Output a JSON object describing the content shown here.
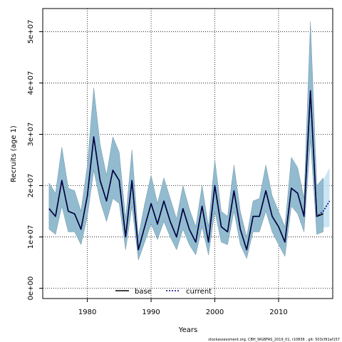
{
  "chart_data": {
    "type": "line",
    "xlabel": "Years",
    "ylabel": "Recruits (age 1)",
    "xlim": [
      1973,
      2018.5
    ],
    "ylim": [
      -2000000,
      54500000
    ],
    "xticks": [
      1980,
      1990,
      2000,
      2010
    ],
    "yticks": [
      0,
      10000000,
      20000000,
      30000000,
      40000000,
      50000000
    ],
    "ytick_labels": [
      "0e+00",
      "1e+07",
      "2e+07",
      "3e+07",
      "4e+07",
      "5e+07"
    ],
    "grid": true,
    "legend": {
      "placement": "bottom-center",
      "entries": [
        "base",
        "current"
      ]
    },
    "footer_text": "stockassessment.org, CBH_WGBFAS_2019_01, r10836 , git: 503cf91af157",
    "series": [
      {
        "name": "base",
        "style": "solid",
        "color": "#000000",
        "band_color": "#8fb8cc",
        "x": [
          1974,
          1975,
          1976,
          1977,
          1978,
          1979,
          1980,
          1981,
          1982,
          1983,
          1984,
          1985,
          1986,
          1987,
          1988,
          1989,
          1990,
          1991,
          1992,
          1993,
          1994,
          1995,
          1996,
          1997,
          1998,
          1999,
          2000,
          2001,
          2002,
          2003,
          2004,
          2005,
          2006,
          2007,
          2008,
          2009,
          2010,
          2011,
          2012,
          2013,
          2014,
          2015,
          2016,
          2017
        ],
        "values": [
          15500000,
          14000000,
          21000000,
          15000000,
          14500000,
          11500000,
          18000000,
          29500000,
          21000000,
          17000000,
          23000000,
          21000000,
          10000000,
          21000000,
          7500000,
          12000000,
          16500000,
          12500000,
          17000000,
          13000000,
          10000000,
          15500000,
          11500000,
          9000000,
          16000000,
          9000000,
          20000000,
          12000000,
          11000000,
          19000000,
          11500000,
          7500000,
          14000000,
          14000000,
          19000000,
          14000000,
          12000000,
          9000000,
          19500000,
          18500000,
          14000000,
          38500000,
          14000000,
          14500000
        ],
        "lower": [
          11500000,
          10500000,
          16000000,
          11000000,
          11000000,
          8500000,
          14000000,
          23000000,
          17000000,
          13000000,
          17500000,
          16500000,
          7500000,
          16000000,
          5500000,
          9000000,
          12500000,
          9500000,
          13000000,
          10000000,
          7500000,
          11500000,
          8500000,
          6500000,
          12000000,
          6500000,
          15000000,
          9000000,
          8500000,
          15000000,
          8500000,
          5800000,
          11000000,
          11000000,
          15000000,
          11000000,
          8500000,
          6200000,
          16000000,
          14500000,
          11000000,
          29000000,
          10500000,
          11000000
        ],
        "upper": [
          20500000,
          18500000,
          27500000,
          19500000,
          19000000,
          15000000,
          24000000,
          39000000,
          28000000,
          22000000,
          29500000,
          26500000,
          13500000,
          27000000,
          10000000,
          16500000,
          22000000,
          16500000,
          21500000,
          17500000,
          13500000,
          20000000,
          15500000,
          12000000,
          20000000,
          12000000,
          25000000,
          15000000,
          14000000,
          24000000,
          15000000,
          10000000,
          17000000,
          17500000,
          24000000,
          18000000,
          15000000,
          12000000,
          25500000,
          23500000,
          17500000,
          52000000,
          20000000,
          21500000
        ]
      },
      {
        "name": "current",
        "style": "dotted",
        "color": "#000080",
        "band_color": "#bfe0f2",
        "x": [
          1974,
          1975,
          1976,
          1977,
          1978,
          1979,
          1980,
          1981,
          1982,
          1983,
          1984,
          1985,
          1986,
          1987,
          1988,
          1989,
          1990,
          1991,
          1992,
          1993,
          1994,
          1995,
          1996,
          1997,
          1998,
          1999,
          2000,
          2001,
          2002,
          2003,
          2004,
          2005,
          2006,
          2007,
          2008,
          2009,
          2010,
          2011,
          2012,
          2013,
          2014,
          2015,
          2016,
          2017,
          2018
        ],
        "values": [
          15500000,
          14000000,
          21000000,
          15000000,
          14500000,
          11500000,
          18000000,
          29500000,
          21000000,
          17000000,
          23000000,
          21000000,
          10000000,
          21000000,
          7500000,
          12000000,
          16500000,
          12500000,
          17000000,
          13000000,
          10000000,
          15500000,
          11500000,
          9000000,
          16000000,
          9000000,
          20000000,
          12000000,
          11000000,
          19000000,
          11500000,
          7500000,
          14000000,
          14000000,
          19000000,
          14000000,
          12000000,
          9000000,
          19500000,
          18500000,
          14000000,
          38500000,
          14000000,
          15000000,
          17000000
        ],
        "lower": [
          11500000,
          10500000,
          16000000,
          11000000,
          11000000,
          8500000,
          14000000,
          23000000,
          17000000,
          13000000,
          17500000,
          16500000,
          7500000,
          16000000,
          5500000,
          9000000,
          12500000,
          9500000,
          13000000,
          10000000,
          7500000,
          11500000,
          8500000,
          6500000,
          12000000,
          6500000,
          15000000,
          9000000,
          8500000,
          15000000,
          8500000,
          5800000,
          11000000,
          11000000,
          15000000,
          11000000,
          8500000,
          6200000,
          16000000,
          14500000,
          11000000,
          29000000,
          10700000,
          11800000,
          12000000
        ],
        "upper": [
          20500000,
          18500000,
          27500000,
          19500000,
          19000000,
          15000000,
          24000000,
          39000000,
          28000000,
          22000000,
          29500000,
          26500000,
          13500000,
          27000000,
          10000000,
          16500000,
          22000000,
          16500000,
          21500000,
          17500000,
          13500000,
          20000000,
          15500000,
          12000000,
          20000000,
          12000000,
          25000000,
          15000000,
          14000000,
          24000000,
          15000000,
          10000000,
          17000000,
          17500000,
          24000000,
          18000000,
          15000000,
          12000000,
          25500000,
          23500000,
          17500000,
          52000000,
          19000000,
          21000000,
          23500000
        ]
      }
    ]
  }
}
